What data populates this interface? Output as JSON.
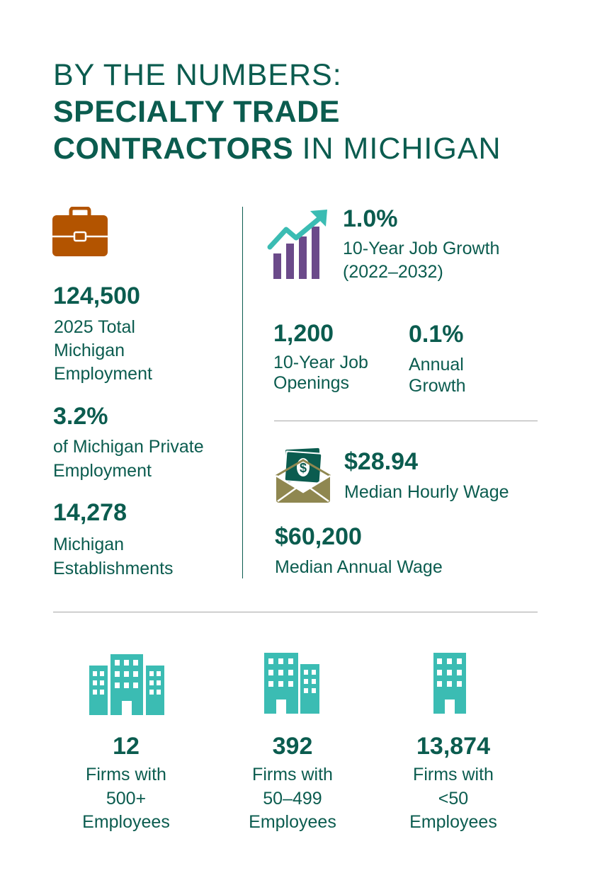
{
  "header": {
    "line1": "BY THE NUMBERS:",
    "line2": "SPECIALTY TRADE",
    "line3_bold": "CONTRACTORS",
    "line3_rest": "IN MICHIGAN"
  },
  "left_stats": [
    {
      "value": "124,500",
      "label_lines": [
        "2025 Total",
        "Michigan",
        "Employment"
      ]
    },
    {
      "value": "3.2%",
      "label_lines": [
        "of Michigan Private",
        "Employment"
      ]
    },
    {
      "value": "14,278",
      "label_lines": [
        "Michigan",
        "Establishments"
      ]
    }
  ],
  "job_growth": {
    "value": "1.0%",
    "label_lines": [
      "10-Year Job Growth",
      "(2022–2032)"
    ]
  },
  "openings": {
    "value": "1,200",
    "label_lines": [
      "10-Year Job",
      "Openings"
    ]
  },
  "annual_growth": {
    "value": "0.1%",
    "label_lines": [
      "Annual",
      "Growth"
    ]
  },
  "hourly_wage": {
    "value": "$28.94",
    "label": "Median Hourly Wage"
  },
  "annual_wage": {
    "value": "$60,200",
    "label": "Median Annual Wage"
  },
  "firms": [
    {
      "value": "12",
      "label_lines": [
        "Firms with",
        "500+",
        "Employees"
      ]
    },
    {
      "value": "392",
      "label_lines": [
        "Firms with",
        "50–499",
        "Employees"
      ]
    },
    {
      "value": "13,874",
      "label_lines": [
        "Firms with",
        "<50",
        "Employees"
      ]
    }
  ],
  "icons": {
    "briefcase": "briefcase-icon",
    "growth": "growth-chart-icon",
    "money": "money-envelope-icon",
    "buildings": "buildings-icon"
  },
  "colors": {
    "primary": "#0b5c4f",
    "briefcase": "#b35400",
    "teal": "#3bbcb3",
    "purple": "#6b4a8a",
    "olive": "#8f8750",
    "rule": "#a6a6a6"
  }
}
